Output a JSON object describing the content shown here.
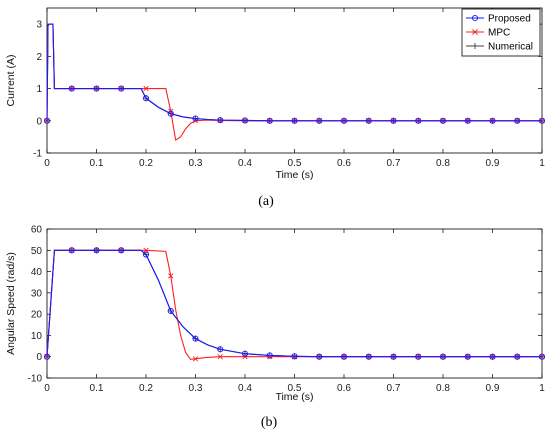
{
  "chart_data": [
    {
      "type": "line",
      "caption": "(a)",
      "xlabel": "Time (s)",
      "ylabel": "Current (A)",
      "xlim": [
        0,
        1
      ],
      "ylim": [
        -1,
        3.5
      ],
      "xticks": [
        "0",
        "0.1",
        "0.2",
        "0.3",
        "0.4",
        "0.5",
        "0.6",
        "0.7",
        "0.8",
        "0.9",
        "1"
      ],
      "yticks": [
        "-1",
        "0",
        "1",
        "2",
        "3"
      ],
      "xtick_values": [
        0,
        0.1,
        0.2,
        0.3,
        0.4,
        0.5,
        0.6,
        0.7,
        0.8,
        0.9,
        1
      ],
      "ytick_values": [
        -1,
        0,
        1,
        2,
        3
      ],
      "grid": false,
      "legend_position": "top-right",
      "series": [
        {
          "name": "Numerical",
          "color": "#404040",
          "marker": "plus",
          "x": [
            0,
            0.002,
            0.004,
            0.012,
            0.015,
            0.05,
            0.1,
            0.15,
            0.19,
            0.2,
            0.225,
            0.25,
            0.275,
            0.3,
            0.325,
            0.35,
            0.4,
            0.45,
            0.5,
            1.0
          ],
          "y": [
            0,
            2.95,
            3.0,
            3.0,
            1.0,
            1.0,
            1.0,
            1.0,
            1.0,
            0.7,
            0.42,
            0.22,
            0.12,
            0.07,
            0.04,
            0.02,
            0.01,
            0.0,
            0.0,
            0.0
          ],
          "marker_x": [
            0,
            0.05,
            0.1,
            0.15,
            0.2,
            0.25,
            0.3,
            0.35,
            0.4,
            0.45,
            0.5,
            0.55,
            0.6,
            0.65,
            0.7,
            0.75,
            0.8,
            0.85,
            0.9,
            0.95,
            1.0
          ],
          "marker_y": [
            0,
            1.0,
            1.0,
            1.0,
            0.7,
            0.22,
            0.07,
            0.02,
            0.01,
            0,
            0,
            0,
            0,
            0,
            0,
            0,
            0,
            0,
            0,
            0,
            0
          ]
        },
        {
          "name": "MPC",
          "color": "#ff2020",
          "marker": "x",
          "x": [
            0,
            0.002,
            0.004,
            0.012,
            0.015,
            0.05,
            0.1,
            0.15,
            0.2,
            0.24,
            0.25,
            0.26,
            0.27,
            0.28,
            0.29,
            0.3,
            0.32,
            0.35,
            0.4,
            1.0
          ],
          "y": [
            0,
            2.95,
            3.0,
            3.0,
            1.0,
            1.0,
            1.0,
            1.0,
            1.0,
            1.0,
            0.3,
            -0.6,
            -0.5,
            -0.25,
            -0.08,
            0.0,
            0.02,
            0.01,
            0.0,
            0.0
          ],
          "marker_x": [
            0,
            0.05,
            0.1,
            0.15,
            0.2,
            0.25,
            0.3,
            0.35,
            0.4,
            0.45,
            0.5,
            0.55,
            0.6,
            0.65,
            0.7,
            0.75,
            0.8,
            0.85,
            0.9,
            0.95,
            1.0
          ],
          "marker_y": [
            0,
            1.0,
            1.0,
            1.0,
            1.0,
            0.3,
            0.0,
            0.01,
            0,
            0,
            0,
            0,
            0,
            0,
            0,
            0,
            0,
            0,
            0,
            0,
            0
          ]
        },
        {
          "name": "Proposed",
          "color": "#1a1aff",
          "marker": "circle",
          "x": [
            0,
            0.002,
            0.004,
            0.012,
            0.015,
            0.05,
            0.1,
            0.15,
            0.19,
            0.2,
            0.225,
            0.25,
            0.275,
            0.3,
            0.325,
            0.35,
            0.4,
            0.45,
            0.5,
            1.0
          ],
          "y": [
            0,
            2.95,
            3.0,
            3.0,
            1.0,
            1.0,
            1.0,
            1.0,
            1.0,
            0.7,
            0.42,
            0.22,
            0.12,
            0.07,
            0.04,
            0.02,
            0.01,
            0.0,
            0.0,
            0.0
          ],
          "marker_x": [
            0,
            0.05,
            0.1,
            0.15,
            0.2,
            0.25,
            0.3,
            0.35,
            0.4,
            0.45,
            0.5,
            0.55,
            0.6,
            0.65,
            0.7,
            0.75,
            0.8,
            0.85,
            0.9,
            0.95,
            1.0
          ],
          "marker_y": [
            0,
            1.0,
            1.0,
            1.0,
            0.7,
            0.22,
            0.07,
            0.02,
            0.01,
            0,
            0,
            0,
            0,
            0,
            0,
            0,
            0,
            0,
            0,
            0,
            0
          ]
        }
      ],
      "legend": [
        "Proposed",
        "MPC",
        "Numerical"
      ]
    },
    {
      "type": "line",
      "caption": "(b)",
      "xlabel": "Time (s)",
      "ylabel": "Angular Speed (rad/s)",
      "xlim": [
        0,
        1
      ],
      "ylim": [
        -10,
        60
      ],
      "xticks": [
        "0",
        "0.1",
        "0.2",
        "0.3",
        "0.4",
        "0.5",
        "0.6",
        "0.7",
        "0.8",
        "0.9",
        "1"
      ],
      "yticks": [
        "-10",
        "0",
        "10",
        "20",
        "30",
        "40",
        "50",
        "60"
      ],
      "xtick_values": [
        0,
        0.1,
        0.2,
        0.3,
        0.4,
        0.5,
        0.6,
        0.7,
        0.8,
        0.9,
        1
      ],
      "ytick_values": [
        -10,
        0,
        10,
        20,
        30,
        40,
        50,
        60
      ],
      "grid": false,
      "series": [
        {
          "name": "Numerical",
          "color": "#404040",
          "marker": "plus",
          "x": [
            0,
            0.015,
            0.05,
            0.1,
            0.15,
            0.19,
            0.2,
            0.225,
            0.25,
            0.275,
            0.3,
            0.325,
            0.35,
            0.4,
            0.45,
            0.5,
            0.55,
            1.0
          ],
          "y": [
            0,
            50,
            50,
            50,
            50,
            50,
            48,
            36,
            21.5,
            14,
            8.5,
            5.5,
            3.5,
            1.4,
            0.6,
            0.2,
            0.0,
            0.0
          ],
          "marker_x": [
            0,
            0.05,
            0.1,
            0.15,
            0.2,
            0.25,
            0.3,
            0.35,
            0.4,
            0.45,
            0.5,
            0.55,
            0.6,
            0.65,
            0.7,
            0.75,
            0.8,
            0.85,
            0.9,
            0.95,
            1.0
          ],
          "marker_y": [
            0,
            50,
            50,
            50,
            48,
            21.5,
            8.5,
            3.5,
            1.4,
            0.6,
            0.2,
            0,
            0,
            0,
            0,
            0,
            0,
            0,
            0,
            0,
            0
          ]
        },
        {
          "name": "MPC",
          "color": "#ff2020",
          "marker": "x",
          "x": [
            0,
            0.015,
            0.05,
            0.1,
            0.15,
            0.2,
            0.24,
            0.25,
            0.26,
            0.27,
            0.28,
            0.29,
            0.3,
            0.32,
            0.35,
            0.4,
            1.0
          ],
          "y": [
            0,
            50,
            50,
            50,
            50,
            50,
            49.5,
            38,
            22,
            10,
            2,
            -1.2,
            -1.0,
            -0.4,
            0.0,
            0.0,
            0.0
          ],
          "marker_x": [
            0,
            0.05,
            0.1,
            0.15,
            0.2,
            0.25,
            0.3,
            0.35,
            0.4,
            0.45,
            0.5,
            0.55,
            0.6,
            0.65,
            0.7,
            0.75,
            0.8,
            0.85,
            0.9,
            0.95,
            1.0
          ],
          "marker_y": [
            0,
            50,
            50,
            50,
            50,
            38,
            -1.0,
            0,
            0,
            0,
            0,
            0,
            0,
            0,
            0,
            0,
            0,
            0,
            0,
            0,
            0
          ]
        },
        {
          "name": "Proposed",
          "color": "#1a1aff",
          "marker": "circle",
          "x": [
            0,
            0.015,
            0.05,
            0.1,
            0.15,
            0.19,
            0.2,
            0.225,
            0.25,
            0.275,
            0.3,
            0.325,
            0.35,
            0.4,
            0.45,
            0.5,
            0.55,
            1.0
          ],
          "y": [
            0,
            50,
            50,
            50,
            50,
            50,
            48,
            36,
            21.5,
            14,
            8.5,
            5.5,
            3.5,
            1.4,
            0.6,
            0.2,
            0.0,
            0.0
          ],
          "marker_x": [
            0,
            0.05,
            0.1,
            0.15,
            0.2,
            0.25,
            0.3,
            0.35,
            0.4,
            0.45,
            0.5,
            0.55,
            0.6,
            0.65,
            0.7,
            0.75,
            0.8,
            0.85,
            0.9,
            0.95,
            1.0
          ],
          "marker_y": [
            0,
            50,
            50,
            50,
            48,
            21.5,
            8.5,
            3.5,
            1.4,
            0.6,
            0.2,
            0,
            0,
            0,
            0,
            0,
            0,
            0,
            0,
            0,
            0
          ]
        }
      ]
    }
  ]
}
